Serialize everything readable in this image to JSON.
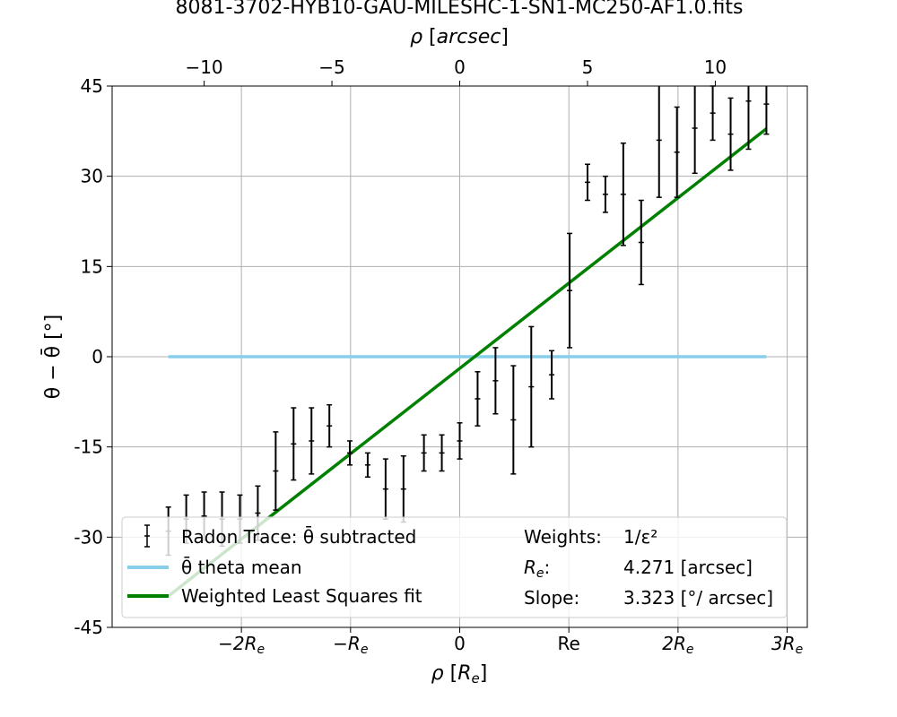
{
  "chart_data": {
    "type": "scatter",
    "title": "8081-3702-HYB10-GAU-MILESHC-1-SN1-MC250-AF1.0.fits",
    "xlabel": "ρ [R_e]",
    "x2label": "ρ [arcsec]",
    "ylabel": "θ − θ̄ [°]",
    "xlim": [
      -13.6,
      13.6
    ],
    "ylim": [
      -45,
      45
    ],
    "grid": true,
    "legend_position": "bottom",
    "re_arcsec": 4.271,
    "y_ticks": [
      {
        "value": 45,
        "label": "45"
      },
      {
        "value": 30,
        "label": "30"
      },
      {
        "value": 15,
        "label": "15"
      },
      {
        "value": 0,
        "label": "0"
      },
      {
        "value": -15,
        "label": "-15"
      },
      {
        "value": -30,
        "label": "-30"
      },
      {
        "value": -45,
        "label": "-45"
      }
    ],
    "x_ticks_bottom": [
      {
        "value": -8.542,
        "label": "−2R",
        "sub": "e"
      },
      {
        "value": -4.271,
        "label": "−R",
        "sub": "e"
      },
      {
        "value": 0,
        "label": "0",
        "sub": ""
      },
      {
        "value": 4.271,
        "label": "Re",
        "sub": ""
      },
      {
        "value": 8.542,
        "label": "2R",
        "sub": "e"
      },
      {
        "value": 12.813,
        "label": "3R",
        "sub": "e"
      }
    ],
    "x_ticks_top": [
      {
        "value": -10,
        "label": "−10"
      },
      {
        "value": -5,
        "label": "−5"
      },
      {
        "value": 0,
        "label": "0"
      },
      {
        "value": 5,
        "label": "5"
      },
      {
        "value": 10,
        "label": "10"
      }
    ],
    "series": [
      {
        "name": "Radon Trace: θ̄ subtracted",
        "type": "errorbar",
        "color": "#000000",
        "points": [
          {
            "x": -11.4,
            "y": -29.0,
            "err": 4.0
          },
          {
            "x": -10.7,
            "y": -27.0,
            "err": 4.0
          },
          {
            "x": -10.0,
            "y": -26.5,
            "err": 4.0
          },
          {
            "x": -9.3,
            "y": -27.0,
            "err": 4.5
          },
          {
            "x": -8.6,
            "y": -27.0,
            "err": 4.0
          },
          {
            "x": -7.9,
            "y": -26.0,
            "err": 4.5
          },
          {
            "x": -7.2,
            "y": -19.0,
            "err": 6.5
          },
          {
            "x": -6.5,
            "y": -14.5,
            "err": 6.0
          },
          {
            "x": -5.8,
            "y": -14.0,
            "err": 5.5
          },
          {
            "x": -5.1,
            "y": -11.5,
            "err": 3.5
          },
          {
            "x": -4.3,
            "y": -16.0,
            "err": 2.0
          },
          {
            "x": -3.6,
            "y": -18.0,
            "err": 2.0
          },
          {
            "x": -2.9,
            "y": -22.0,
            "err": 5.0
          },
          {
            "x": -2.2,
            "y": -22.0,
            "err": 5.5
          },
          {
            "x": -1.4,
            "y": -16.0,
            "err": 3.0
          },
          {
            "x": -0.7,
            "y": -16.0,
            "err": 3.0
          },
          {
            "x": 0.0,
            "y": -14.0,
            "err": 3.0
          },
          {
            "x": 0.7,
            "y": -7.0,
            "err": 4.5
          },
          {
            "x": 1.4,
            "y": -4.0,
            "err": 5.5
          },
          {
            "x": 2.1,
            "y": -10.5,
            "err": 9.0
          },
          {
            "x": 2.8,
            "y": -5.0,
            "err": 10.0
          },
          {
            "x": 3.6,
            "y": -3.0,
            "err": 4.0
          },
          {
            "x": 4.3,
            "y": 11.0,
            "err": 9.5
          },
          {
            "x": 5.0,
            "y": 29.0,
            "err": 3.0
          },
          {
            "x": 5.7,
            "y": 27.0,
            "err": 3.0
          },
          {
            "x": 6.4,
            "y": 27.0,
            "err": 8.5
          },
          {
            "x": 7.1,
            "y": 19.0,
            "err": 7.0
          },
          {
            "x": 7.8,
            "y": 36.0,
            "err": 9.5
          },
          {
            "x": 8.5,
            "y": 34.0,
            "err": 7.5
          },
          {
            "x": 9.2,
            "y": 38.0,
            "err": 7.5
          },
          {
            "x": 9.9,
            "y": 40.5,
            "err": 4.5
          },
          {
            "x": 10.6,
            "y": 37.0,
            "err": 6.0
          },
          {
            "x": 11.3,
            "y": 42.5,
            "err": 8.0
          },
          {
            "x": 12.0,
            "y": 42.0,
            "err": 5.0
          }
        ]
      },
      {
        "name": "θ̄ theta mean",
        "type": "line",
        "color": "#87ceeb",
        "points": [
          {
            "x": -11.4,
            "y": 0
          },
          {
            "x": 12.0,
            "y": 0
          }
        ]
      },
      {
        "name": "Weighted Least Squares fit",
        "type": "line",
        "color": "#008000",
        "points": [
          {
            "x": -11.4,
            "y": -39.8
          },
          {
            "x": 12.0,
            "y": 37.9
          }
        ]
      }
    ],
    "annotations": [
      {
        "label": "Weights:",
        "value": "1/ε²"
      },
      {
        "label": "R_e:",
        "value": "4.271 [arcsec]"
      },
      {
        "label": "Slope:",
        "value": "3.323 [°/ arcsec]"
      }
    ]
  }
}
